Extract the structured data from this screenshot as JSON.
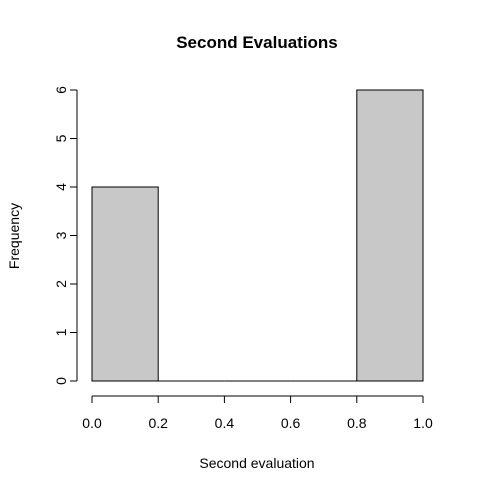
{
  "chart_data": {
    "type": "bar",
    "title": "Second Evaluations",
    "xlabel": "Second evaluation",
    "ylabel": "Frequency",
    "bins": [
      {
        "from": 0.0,
        "to": 0.2,
        "count": 4
      },
      {
        "from": 0.2,
        "to": 0.4,
        "count": 0
      },
      {
        "from": 0.4,
        "to": 0.6,
        "count": 0
      },
      {
        "from": 0.6,
        "to": 0.8,
        "count": 0
      },
      {
        "from": 0.8,
        "to": 1.0,
        "count": 6
      }
    ],
    "x_ticks": [
      "0.0",
      "0.2",
      "0.4",
      "0.6",
      "0.8",
      "1.0"
    ],
    "y_ticks": [
      "0",
      "1",
      "2",
      "3",
      "4",
      "5",
      "6"
    ],
    "xlim": [
      0,
      1
    ],
    "ylim": [
      0,
      6
    ],
    "grid": false,
    "bar_color": "#c8c8c8"
  }
}
